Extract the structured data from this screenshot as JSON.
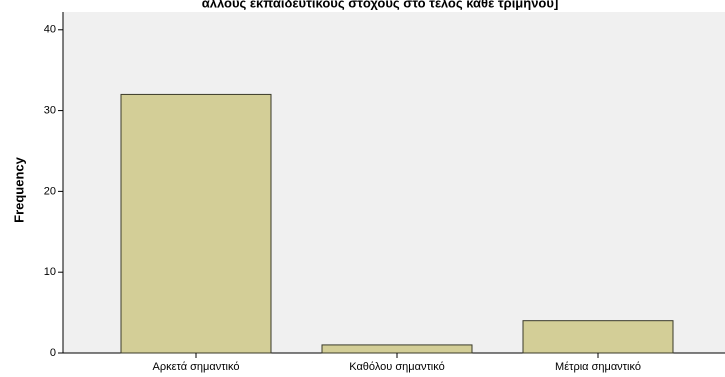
{
  "chart_data": {
    "type": "bar",
    "title": "άλλους εκπαιδευτικούς στόχους στο τέλος κάθε τριμήνου]",
    "ylabel": "Frequency",
    "categories": [
      "Αρκετά σημαντικό",
      "Καθόλου σημαντικό",
      "Μέτρια σημαντικό"
    ],
    "values": [
      32,
      1,
      4
    ],
    "color": "#d3ce97",
    "ylim": [
      0,
      42.2
    ],
    "yticks": [
      0,
      10,
      20,
      30,
      40
    ],
    "grid": false
  }
}
